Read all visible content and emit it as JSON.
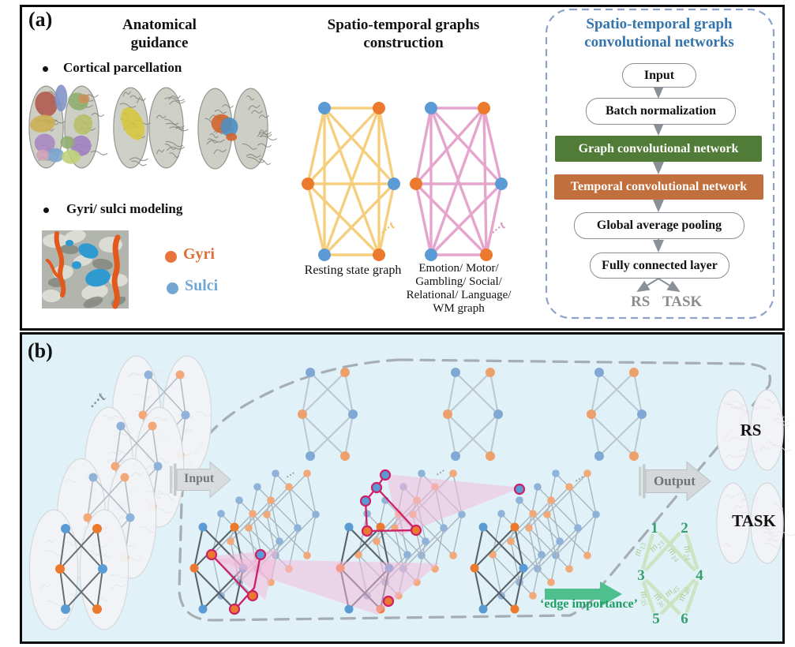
{
  "panel_a": {
    "label": "(a)",
    "anatomical": {
      "title": "Anatomical guidance",
      "bullet1": "Cortical parcellation",
      "bullet2": "Gyri/ sulci modeling",
      "legend": {
        "gyri": "Gyri",
        "sulci": "Sulci"
      }
    },
    "graphs": {
      "title": "Spatio-temporal graphs construction",
      "resting_label": "Resting state graph",
      "task_label": "Emotion/ Motor/ Gambling/ Social/ Relational/ Language/ WM graph",
      "time_annotation": "···t"
    },
    "network": {
      "title": "Spatio-temporal graph convolutional networks",
      "steps": [
        {
          "label": "Input",
          "type": "pill"
        },
        {
          "label": "Batch normalization",
          "type": "pill"
        },
        {
          "label": "Graph convolutional network",
          "type": "box",
          "color": "#507c38"
        },
        {
          "label": "Temporal convolutional network",
          "type": "box",
          "color": "#c26f3e"
        },
        {
          "label": "Global average pooling",
          "type": "pill"
        },
        {
          "label": "Fully connected layer",
          "type": "pill"
        }
      ],
      "outputs": [
        "RS",
        "TASK"
      ]
    }
  },
  "panel_b": {
    "label": "(b)",
    "input_label": "Input",
    "output_label": "Output",
    "rs_label": "RS",
    "task_label": "TASK",
    "edge_importance_label": "‘edge importance’",
    "node_numbers": [
      "1",
      "2",
      "3",
      "4",
      "5",
      "6"
    ],
    "edge_labels": [
      "m13",
      "m14",
      "m23",
      "m24",
      "m35",
      "m36",
      "m45",
      "m46"
    ],
    "time_annotation": "···t",
    "dots": "···"
  },
  "colors": {
    "node_blue": "#5b9bd5",
    "node_orange": "#ec7a2e",
    "muted_blue": "#8fb2d9",
    "muted_orange": "#f2a878",
    "resting_edge": "#f5cf7e",
    "task_edge": "#e5a5cd",
    "gyri_orange": "#e8743b",
    "sulci_blue": "#72a7d4",
    "title_blue": "#3474ad",
    "gcn_green": "#507c38",
    "tcn_orange": "#c26f3e",
    "flow_gray": "#8a9098",
    "rs_task_gray": "#8b8b8b",
    "panel_b_bg": "#e0f1f8",
    "dashed_gray": "#9ba2a8",
    "highlight_crimson": "#ce2068",
    "highlight_pink": "#f6b9d8",
    "green_arrow": "#4dc08d",
    "edge_importance_green": "#1f9e63",
    "pale_green": "#cde4c0",
    "number_green": "#35a06b",
    "stack_front_edge": "#5a6168",
    "stack_back_edge": "#aab7c0"
  }
}
